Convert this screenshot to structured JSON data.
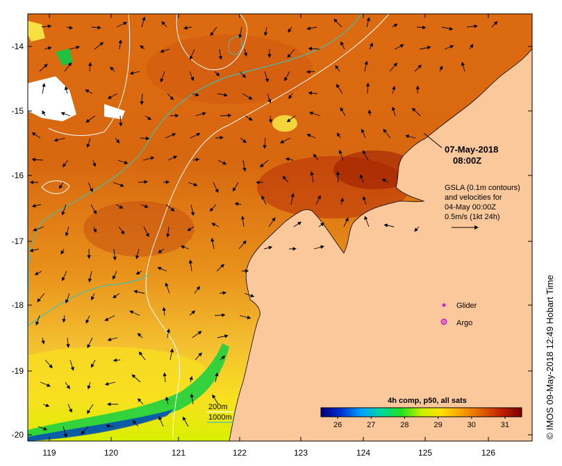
{
  "map": {
    "xticks": [
      "119",
      "120",
      "121",
      "122",
      "123",
      "124",
      "125",
      "126"
    ],
    "yticks": [
      "-14",
      "-15",
      "-16",
      "-17",
      "-18",
      "-19",
      "-20"
    ],
    "colors": {
      "land": "#fbc89b",
      "coast": "#000000",
      "contour_200m": "#ffffff",
      "contour_1000m": "#40c0b0",
      "glider_marker": "#d020d0",
      "argo_marker": "#d020d0"
    }
  },
  "annotations": {
    "date": "07-May-2018",
    "time": "08:00Z",
    "gsla_line1": "GSLA (0.1m contours)",
    "gsla_line2": "and velocities for",
    "gsla_line3": "04-May 00:00Z",
    "gsla_line4": "0.5m/s (1kt 24h)",
    "glider": "Glider",
    "argo": "Argo",
    "depth_200": "200m",
    "depth_1000": "1000m",
    "credit": "© IMOS 09-May-2018 12:49 Hobart Time"
  },
  "colorbar": {
    "title": "4h comp, p50, all sats",
    "ticks": [
      "26",
      "27",
      "28",
      "29",
      "30",
      "31"
    ],
    "range": [
      25.5,
      31.5
    ],
    "colors": [
      "#00007a",
      "#0030d0",
      "#00a0ff",
      "#00d8a0",
      "#20e020",
      "#c8f000",
      "#ffe000",
      "#f8a000",
      "#e06000",
      "#c02000",
      "#7a0000"
    ]
  }
}
